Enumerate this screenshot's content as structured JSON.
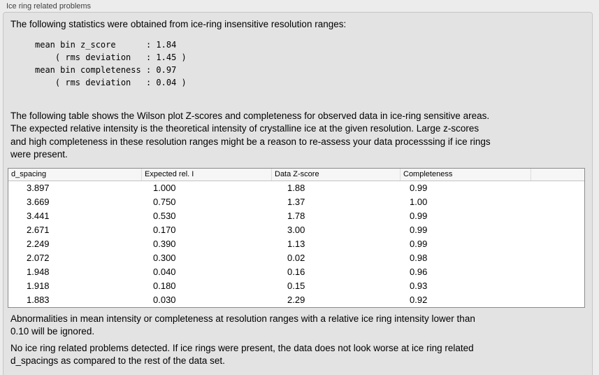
{
  "panel": {
    "title": "Ice ring related problems"
  },
  "intro_text": "The following statistics were obtained from ice-ring insensitive resolution ranges:",
  "stats_block": {
    "lines": [
      "mean bin z_score      : 1.84",
      "    ( rms deviation   : 1.45 )",
      "mean bin completeness : 0.97",
      "    ( rms deviation   : 0.04 )"
    ]
  },
  "table_intro_lines": [
    "The following table shows the Wilson plot Z-scores and completeness for observed data in ice-ring sensitive areas.",
    "The expected relative intensity is the theoretical intensity of crystalline ice at the given resolution. Large z-scores",
    "and high completeness in these resolution ranges might be a reason to re-assess your data processsing if ice rings",
    "were present."
  ],
  "table": {
    "columns": [
      "d_spacing",
      "Expected rel. I",
      "Data Z-score",
      "Completeness",
      ""
    ],
    "col_keys": [
      "d_spacing",
      "expected_rel_i",
      "data_z_score",
      "completeness"
    ],
    "rows": [
      [
        "3.897",
        "1.000",
        "1.88",
        "0.99"
      ],
      [
        "3.669",
        "0.750",
        "1.37",
        "1.00"
      ],
      [
        "3.441",
        "0.530",
        "1.78",
        "0.99"
      ],
      [
        "2.671",
        "0.170",
        "3.00",
        "0.99"
      ],
      [
        "2.249",
        "0.390",
        "1.13",
        "0.99"
      ],
      [
        "2.072",
        "0.300",
        "0.02",
        "0.98"
      ],
      [
        "1.948",
        "0.040",
        "0.16",
        "0.96"
      ],
      [
        "1.918",
        "0.180",
        "0.15",
        "0.93"
      ],
      [
        "1.883",
        "0.030",
        "2.29",
        "0.92"
      ]
    ]
  },
  "note_lines": [
    "Abnormalities in mean intensity or completeness at resolution ranges with a relative ice ring intensity lower than",
    "0.10 will be ignored."
  ],
  "conclusion_lines": [
    "No ice ring related problems detected. If ice rings were present, the data does not look worse at ice ring related",
    "d_spacings as compared to the rest of the data set."
  ],
  "colors": {
    "page_background": "#ececec",
    "box_background": "#e3e3e3",
    "box_border": "#c6c6c6",
    "table_border": "#8a8a8a",
    "header_background": "#f6f6f6",
    "text": "#000000",
    "label_text": "#3f3f3f"
  }
}
